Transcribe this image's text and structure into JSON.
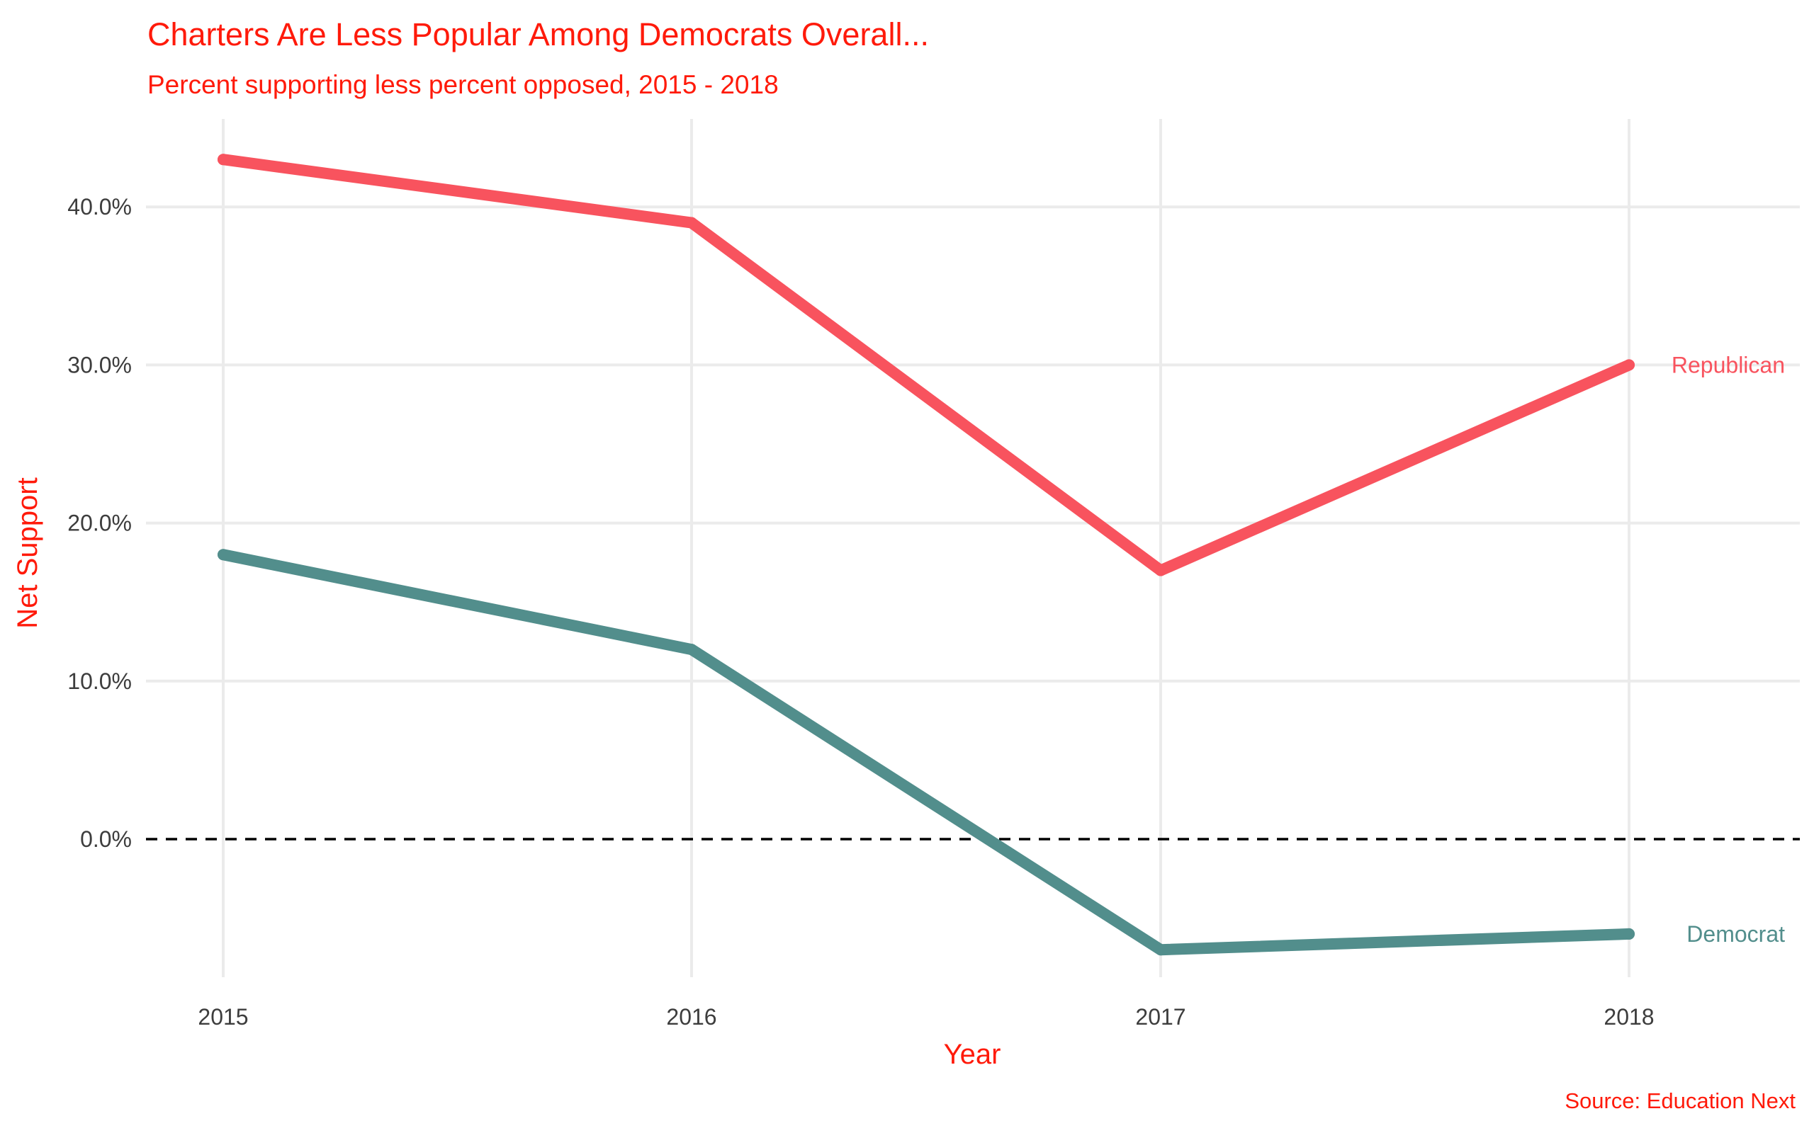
{
  "chart_data": {
    "type": "line",
    "title": "Charters Are Less Popular Among Democrats Overall...",
    "subtitle": "Percent supporting less percent opposed, 2015 - 2018",
    "xlabel": "Year",
    "ylabel": "Net Support",
    "caption": "Source: Education Next",
    "categories": [
      "2015",
      "2016",
      "2017",
      "2018"
    ],
    "y_ticks": [
      0,
      10,
      20,
      30,
      40
    ],
    "y_tick_labels": [
      "0.0%",
      "10.0%",
      "20.0%",
      "30.0%",
      "40.0%"
    ],
    "ylim": [
      -9,
      46
    ],
    "grid": true,
    "legend": "none (direct labels at line ends)",
    "reference_line": {
      "y": 0,
      "style": "dashed",
      "color": "#000000"
    },
    "series": [
      {
        "name": "Republican",
        "values": [
          43,
          39,
          17,
          30
        ],
        "color": "#F8535E"
      },
      {
        "name": "Democrat",
        "values": [
          18,
          12,
          -7,
          -6
        ],
        "color": "#528E8C"
      }
    ],
    "colors": {
      "text_accent": "#FF1A0A",
      "grid": "#EBEBEB",
      "tick_text": "#3D3D3D"
    }
  }
}
